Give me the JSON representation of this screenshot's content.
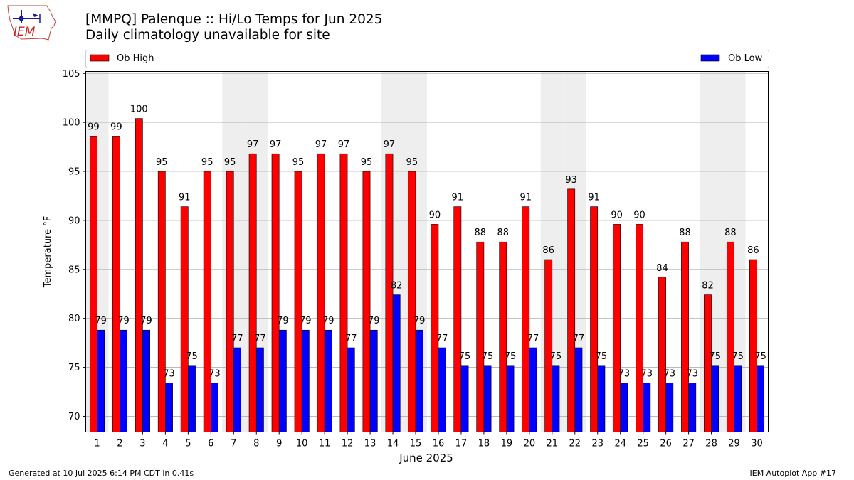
{
  "logo": {
    "text": "IEM"
  },
  "header": {
    "title": "[MMPQ] Palenque :: Hi/Lo Temps for Jun 2025",
    "subtitle": "Daily climatology unavailable for site"
  },
  "footer": {
    "generated": "Generated at 10 Jul 2025 6:14 PM CDT in 0.41s",
    "app": "IEM Autoplot App #17"
  },
  "colors": {
    "high": "#ff0000",
    "low": "#0000ff",
    "weekend_band": "#eeeeee",
    "grid": "#b0b0b0"
  },
  "chart_data": {
    "type": "bar",
    "xlabel": "June 2025",
    "ylabel": "Temperature °F",
    "ylim": [
      68.4,
      105.2
    ],
    "yticks": [
      70,
      75,
      80,
      85,
      90,
      95,
      100,
      105
    ],
    "grid": true,
    "legend_placement": "top",
    "categories": [
      "1",
      "2",
      "3",
      "4",
      "5",
      "6",
      "7",
      "8",
      "9",
      "10",
      "11",
      "12",
      "13",
      "14",
      "15",
      "16",
      "17",
      "18",
      "19",
      "20",
      "21",
      "22",
      "23",
      "24",
      "25",
      "26",
      "27",
      "28",
      "29",
      "30"
    ],
    "weekend_days": [
      1,
      7,
      8,
      14,
      15,
      21,
      22,
      28,
      29
    ],
    "series": [
      {
        "name": "Ob High",
        "values": [
          99,
          99,
          100,
          95,
          91,
          95,
          95,
          97,
          97,
          95,
          97,
          97,
          95,
          97,
          95,
          90,
          91,
          88,
          88,
          91,
          86,
          93,
          91,
          90,
          90,
          84,
          88,
          82,
          88,
          86
        ],
        "plot_values": [
          98.6,
          98.6,
          100.4,
          95.0,
          91.4,
          95.0,
          95.0,
          96.8,
          96.8,
          95.0,
          96.8,
          96.8,
          95.0,
          96.8,
          95.0,
          89.6,
          91.4,
          87.8,
          87.8,
          91.4,
          86.0,
          93.2,
          91.4,
          89.6,
          89.6,
          84.2,
          87.8,
          82.4,
          87.8,
          86.0
        ]
      },
      {
        "name": "Ob Low",
        "values": [
          79,
          79,
          79,
          73,
          75,
          73,
          77,
          77,
          79,
          79,
          79,
          77,
          79,
          82,
          79,
          77,
          75,
          75,
          75,
          77,
          75,
          77,
          75,
          73,
          73,
          73,
          73,
          75,
          75,
          75
        ],
        "plot_values": [
          78.8,
          78.8,
          78.8,
          73.4,
          75.2,
          73.4,
          77.0,
          77.0,
          78.8,
          78.8,
          78.8,
          77.0,
          78.8,
          82.4,
          78.8,
          77.0,
          75.2,
          75.2,
          75.2,
          77.0,
          75.2,
          77.0,
          75.2,
          73.4,
          73.4,
          73.4,
          73.4,
          75.2,
          75.2,
          75.2
        ]
      }
    ]
  }
}
